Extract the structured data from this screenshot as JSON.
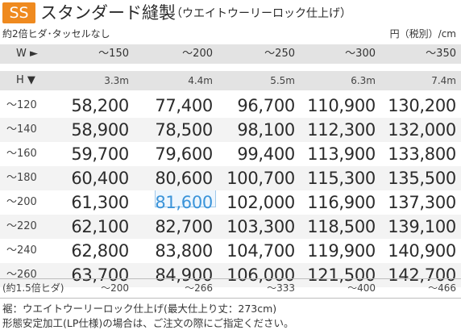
{
  "header": {
    "badge": "SS",
    "title": "スタンダード縫製",
    "subtitle": "（ウエイトウーリーロック仕上げ）",
    "note_left": "約2倍ヒダ･タッセルなし",
    "unit": "円（税別）/cm"
  },
  "table": {
    "w_label": "W ►",
    "h_label": "H ▼",
    "widths": [
      "～150",
      "～200",
      "～250",
      "～300",
      "～350"
    ],
    "fabric_lengths": [
      "3.3m",
      "4.4m",
      "5.5m",
      "6.3m",
      "7.4m"
    ],
    "rows": [
      {
        "h": "～120",
        "prices": [
          "58,200",
          "77,400",
          "96,700",
          "110,900",
          "130,200"
        ]
      },
      {
        "h": "～140",
        "prices": [
          "58,900",
          "78,500",
          "98,100",
          "112,300",
          "132,000"
        ]
      },
      {
        "h": "～160",
        "prices": [
          "59,700",
          "79,600",
          "99,400",
          "113,900",
          "133,800"
        ]
      },
      {
        "h": "～180",
        "prices": [
          "60,400",
          "80,600",
          "100,700",
          "115,300",
          "135,500"
        ]
      },
      {
        "h": "～200",
        "prices": [
          "61,300",
          "81,600",
          "102,000",
          "116,900",
          "137,300"
        ]
      },
      {
        "h": "～220",
        "prices": [
          "62,100",
          "82,700",
          "103,300",
          "118,500",
          "139,100"
        ]
      },
      {
        "h": "～240",
        "prices": [
          "62,800",
          "83,800",
          "104,700",
          "119,900",
          "140,900"
        ]
      },
      {
        "h": "～260",
        "prices": [
          "63,700",
          "84,900",
          "106,000",
          "121,500",
          "142,700"
        ]
      }
    ],
    "highlighted_cell": {
      "row": 4,
      "col": 1,
      "color": "#3b94d9"
    },
    "footer_label": "(約1.5倍ヒダ)",
    "footer_widths": [
      "～200",
      "～266",
      "～333",
      "～400",
      "～466"
    ]
  },
  "notes": [
    "裾：ウエイトウーリーロック仕上げ(最大仕上り丈：273cm)",
    "形態安定加工(LP仕様)の場合は、ご注文の際にご指定ください。"
  ],
  "colors": {
    "badge": "#ef8a1f",
    "highlight": "#3b94d9",
    "header_bg": "#e3e3e3"
  }
}
